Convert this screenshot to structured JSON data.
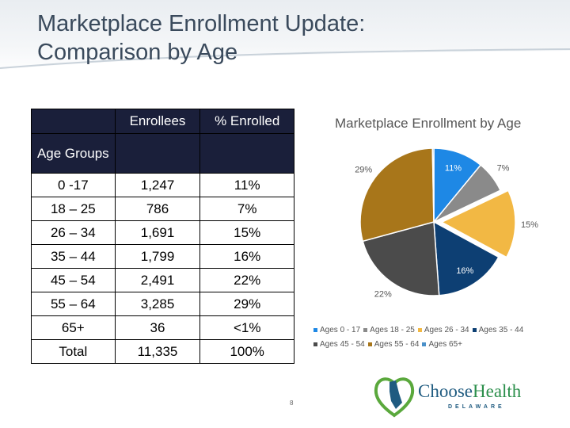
{
  "slide": {
    "title_line1": "Marketplace Enrollment Update:",
    "title_line2": "Comparison by Age",
    "page_number": "8"
  },
  "table": {
    "header": {
      "col2": "Enrollees",
      "col3": "% Enrolled"
    },
    "subheader": {
      "col1": "Age Groups"
    },
    "rows": [
      {
        "age": "0 -17",
        "enrollees": "1,247",
        "percent": "11%"
      },
      {
        "age": "18 – 25",
        "enrollees": "786",
        "percent": "7%"
      },
      {
        "age": "26 – 34",
        "enrollees": "1,691",
        "percent": "15%"
      },
      {
        "age": "35 – 44",
        "enrollees": "1,799",
        "percent": "16%"
      },
      {
        "age": "45 – 54",
        "enrollees": "2,491",
        "percent": "22%"
      },
      {
        "age": "55 – 64",
        "enrollees": "3,285",
        "percent": "29%"
      },
      {
        "age": "65+",
        "enrollees": "36",
        "percent": "<1%"
      }
    ],
    "total": {
      "age": "Total",
      "enrollees": "11,335",
      "percent": "100%"
    }
  },
  "chart_data": {
    "type": "pie",
    "title": "Marketplace Enrollment by Age",
    "categories": [
      "Ages 0 - 17",
      "Ages 18 - 25",
      "Ages 26 - 34",
      "Ages 35 - 44",
      "Ages 45 - 54",
      "Ages 55 - 64",
      "Ages 65+"
    ],
    "values": [
      11,
      7,
      15,
      16,
      22,
      29,
      0.3
    ],
    "labels": [
      "11%",
      "7%",
      "15%",
      "16%",
      "22%",
      "29%",
      ""
    ],
    "colors": [
      "#1e88e5",
      "#8a8a8a",
      "#f2b844",
      "#0d3f73",
      "#4b4b4b",
      "#a8761a",
      "#4a90c9"
    ],
    "legend_position": "bottom"
  },
  "logo": {
    "choose": "Choose",
    "health": "Health",
    "state": "DELAWARE"
  }
}
